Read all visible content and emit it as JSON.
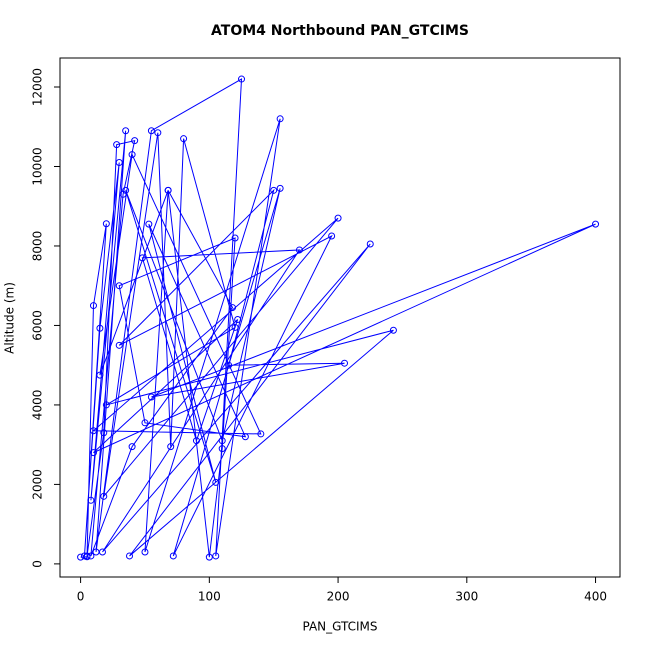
{
  "chart_data": {
    "type": "line",
    "title": "ATOM4 Northbound PAN_GTCIMS",
    "x_label": "PAN_GTCIMS",
    "y_label": "Altitude (m)",
    "x": [
      0,
      5,
      10,
      20,
      3,
      15,
      30,
      8,
      35,
      12,
      55,
      125,
      105,
      155,
      50,
      68,
      15,
      40,
      140,
      10,
      200,
      18,
      60,
      70,
      80,
      120,
      20,
      243,
      38,
      225,
      17,
      170,
      48,
      90,
      122,
      10,
      400,
      55,
      205,
      115,
      150,
      30,
      195,
      72,
      155,
      110,
      35,
      105,
      53,
      128,
      50,
      30,
      120,
      110,
      100,
      68,
      118,
      40,
      8,
      33,
      42,
      28,
      18,
      5
    ],
    "series": [
      {
        "name": "PAN_GTCIMS",
        "color": "#0000ff",
        "values": [
          170,
          180,
          6500,
          8560,
          200,
          5930,
          10100,
          1600,
          10900,
          300,
          10900,
          12200,
          200,
          11200,
          300,
          9400,
          4750,
          10300,
          3270,
          3350,
          8700,
          1700,
          10850,
          2950,
          10700,
          5950,
          4000,
          5880,
          200,
          8050,
          300,
          7900,
          7700,
          3100,
          6150,
          2800,
          8550,
          4200,
          5050,
          5000,
          9400,
          5500,
          8250,
          200,
          9450,
          3100,
          9400,
          2050,
          8550,
          3200,
          3550,
          7000,
          8200,
          2900,
          170,
          9400,
          6450,
          2950,
          200,
          9300,
          10650,
          10550,
          3300,
          200
        ]
      }
    ],
    "xlim": [
      -16,
      419
    ],
    "ylim": [
      -330,
      12730
    ],
    "xticks": [
      0,
      100,
      200,
      300,
      400
    ],
    "yticks": [
      0,
      2000,
      4000,
      6000,
      8000,
      10000,
      12000
    ]
  }
}
